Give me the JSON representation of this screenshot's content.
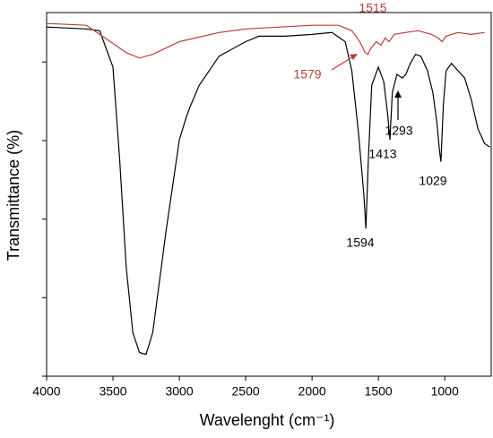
{
  "chart_data": {
    "type": "line",
    "xlabel": "Wavelenght (cm⁻¹)",
    "ylabel": "Transmittance (%)",
    "xlim": [
      4000,
      650
    ],
    "xticks": [
      4000,
      3500,
      3000,
      2500,
      2000,
      1500,
      1000
    ],
    "ylim": [
      0,
      100
    ],
    "yticks": [
      0,
      21.6,
      43.2,
      64.8,
      86.4
    ],
    "series": [
      {
        "color": "#000000",
        "x": [
          4000,
          3700,
          3600,
          3500,
          3450,
          3400,
          3350,
          3300,
          3250,
          3200,
          3100,
          3000,
          2950,
          2920,
          2850,
          2700,
          2500,
          2400,
          2200,
          2000,
          1850,
          1750,
          1700,
          1650,
          1610,
          1594,
          1575,
          1550,
          1500,
          1460,
          1430,
          1413,
          1395,
          1360,
          1320,
          1293,
          1260,
          1220,
          1180,
          1130,
          1090,
          1060,
          1040,
          1029,
          1010,
          990,
          950,
          900,
          850,
          800,
          750,
          700,
          660
        ],
        "values": [
          96,
          95.5,
          95,
          85,
          60,
          30,
          12,
          6.5,
          6,
          12,
          40,
          65,
          71,
          74,
          80,
          88,
          92,
          93.5,
          93.5,
          94,
          94.5,
          92,
          84,
          67,
          50,
          40.6,
          60,
          80,
          85,
          81,
          72,
          65,
          78,
          83,
          82,
          83,
          86,
          88.5,
          88,
          84,
          78,
          70,
          62,
          59,
          75,
          84,
          86,
          84,
          82,
          76,
          68,
          64,
          63
        ]
      },
      {
        "color": "#b5413a",
        "x": [
          4000,
          3700,
          3600,
          3400,
          3300,
          3200,
          3000,
          2700,
          2500,
          2000,
          1800,
          1700,
          1640,
          1600,
          1579,
          1560,
          1515,
          1480,
          1450,
          1420,
          1380,
          1300,
          1200,
          1100,
          1050,
          1020,
          990,
          950,
          900,
          800,
          700
        ],
        "values": [
          97,
          96.5,
          94,
          89,
          87.5,
          88.5,
          92,
          94.5,
          95.5,
          96.5,
          96.5,
          95,
          92,
          89,
          88.5,
          90,
          92,
          91,
          93,
          92,
          94,
          94.5,
          95,
          94,
          93,
          92,
          93.5,
          94,
          94.5,
          94,
          94.5
        ]
      }
    ],
    "annotations": [
      {
        "text": "1515",
        "color": "#b5413a"
      },
      {
        "text": "1579",
        "color": "#b5413a"
      },
      {
        "text": "1594",
        "color": "#000000"
      },
      {
        "text": "1413",
        "color": "#000000"
      },
      {
        "text": "1293",
        "color": "#000000"
      },
      {
        "text": "1029",
        "color": "#000000"
      }
    ]
  }
}
